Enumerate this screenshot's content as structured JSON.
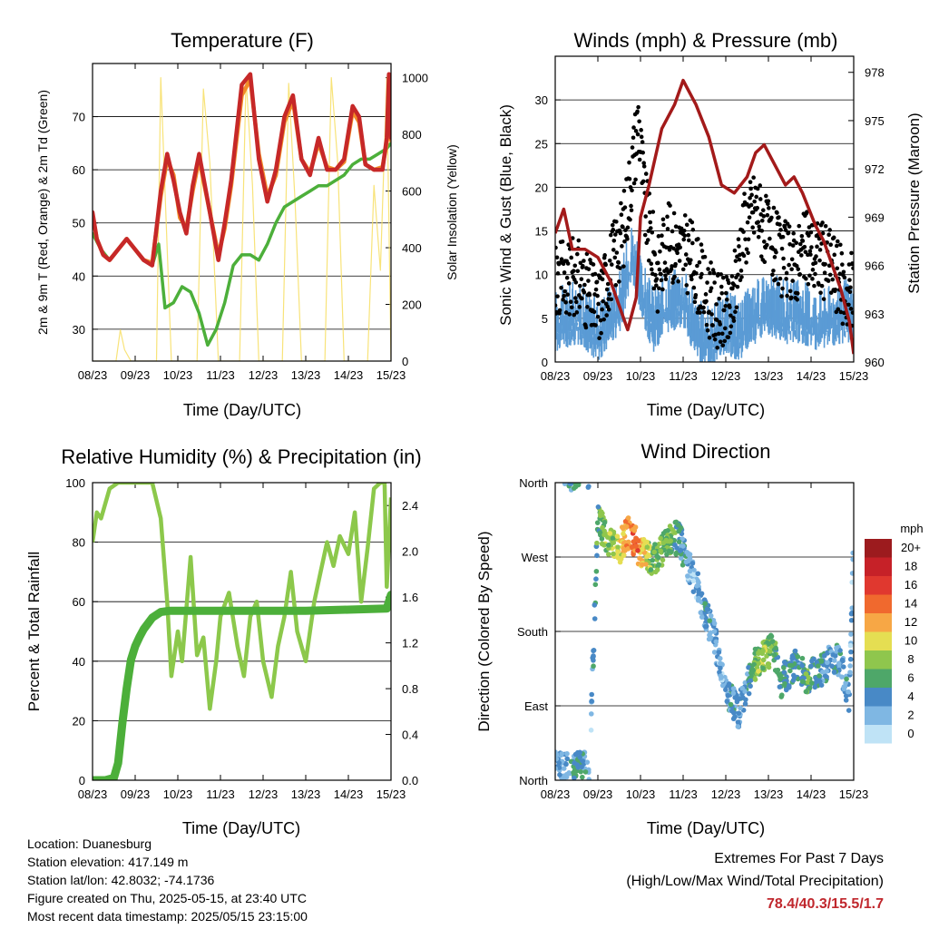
{
  "colors": {
    "temp_2m": "#c62828",
    "temp_9m": "#f28c28",
    "dewpoint": "#4caf3a",
    "solar": "#f7e06a",
    "wind": "#5a9bd5",
    "gust": "#000000",
    "pressure": "#a31a1a",
    "rh": "#8cc84b",
    "precip": "#4caf3a",
    "extremes": "#c0272d"
  },
  "chart_data": [
    {
      "id": "temperature",
      "type": "line",
      "title": "Temperature (F)",
      "xlabel": "Time (Day/UTC)",
      "ylabel": "2m & 9m T (Red, Orange) & 2m Td (Green)",
      "y2label": "Solar Insolation (Yellow)",
      "x_ticks": [
        "08/23",
        "09/23",
        "10/23",
        "11/23",
        "12/23",
        "13/23",
        "14/23",
        "15/23"
      ],
      "y_ticks": [
        30,
        40,
        50,
        60,
        70
      ],
      "ylim": [
        24,
        80
      ],
      "y2_ticks": [
        0,
        200,
        400,
        600,
        800,
        1000
      ],
      "y2lim": [
        0,
        1050
      ],
      "grid": true,
      "series": [
        {
          "name": "2m T",
          "color_key": "temp_2m",
          "x": [
            0,
            0.1,
            0.25,
            0.4,
            0.6,
            0.8,
            1.0,
            1.2,
            1.4,
            1.6,
            1.75,
            1.9,
            2.05,
            2.2,
            2.35,
            2.5,
            2.75,
            2.95,
            3.1,
            3.25,
            3.5,
            3.7,
            3.9,
            4.1,
            4.3,
            4.5,
            4.7,
            4.9,
            5.1,
            5.3,
            5.5,
            5.7,
            5.9,
            6.1,
            6.25,
            6.4,
            6.6,
            6.8,
            6.9,
            6.95,
            7.0
          ],
          "y": [
            52,
            47,
            44,
            43,
            45,
            47,
            45,
            43,
            42,
            56,
            63,
            58,
            52,
            48,
            57,
            63,
            52,
            43,
            50,
            58,
            76,
            78,
            62,
            54,
            60,
            70,
            74,
            62,
            59,
            66,
            60,
            60,
            62,
            72,
            70,
            61,
            60,
            60,
            66,
            78,
            66
          ]
        },
        {
          "name": "9m T",
          "color_key": "temp_9m",
          "x": [
            0,
            0.1,
            0.25,
            0.4,
            0.6,
            0.8,
            1.0,
            1.2,
            1.4,
            1.6,
            1.75,
            1.9,
            2.05,
            2.2,
            2.35,
            2.5,
            2.75,
            2.95,
            3.1,
            3.25,
            3.5,
            3.7,
            3.9,
            4.1,
            4.3,
            4.5,
            4.7,
            4.9,
            5.1,
            5.3,
            5.5,
            5.7,
            5.9,
            6.1,
            6.25,
            6.4,
            6.6,
            6.8,
            6.9,
            6.95,
            7.0
          ],
          "y": [
            51.5,
            47,
            44,
            43,
            45,
            47,
            45,
            43,
            42.5,
            55,
            62,
            59,
            51,
            49,
            56,
            62,
            52,
            44,
            49,
            57,
            74,
            77,
            63,
            55,
            59,
            69,
            73,
            62,
            59.5,
            65,
            60.5,
            60,
            61.5,
            71,
            69,
            61,
            60,
            60.5,
            65,
            76,
            65.5
          ]
        },
        {
          "name": "2m Td",
          "color_key": "dewpoint",
          "x": [
            0,
            0.2,
            0.4,
            0.6,
            0.8,
            1.0,
            1.2,
            1.4,
            1.55,
            1.7,
            1.9,
            2.1,
            2.3,
            2.5,
            2.7,
            2.9,
            3.1,
            3.3,
            3.5,
            3.7,
            3.9,
            4.1,
            4.3,
            4.5,
            4.7,
            4.9,
            5.1,
            5.3,
            5.5,
            5.7,
            5.9,
            6.1,
            6.3,
            6.5,
            6.7,
            6.9,
            7.0
          ],
          "y": [
            48,
            45,
            43,
            45,
            47,
            45,
            43,
            42,
            46,
            34,
            35,
            38,
            37,
            33,
            27,
            30,
            35,
            42,
            44,
            44,
            43,
            46,
            50,
            53,
            54,
            55,
            56,
            57,
            57,
            58,
            59,
            61,
            62,
            62,
            63,
            64,
            65
          ]
        },
        {
          "name": "Solar Insolation",
          "color_key": "solar",
          "axis": "y2",
          "x": [
            0,
            0.55,
            0.65,
            0.75,
            0.9,
            1.5,
            1.6,
            1.7,
            1.85,
            2.0,
            2.45,
            2.6,
            2.75,
            2.95,
            3.45,
            3.6,
            3.75,
            3.9,
            4.45,
            4.6,
            4.75,
            4.9,
            5.45,
            5.6,
            5.75,
            5.9,
            6.45,
            6.6,
            6.75,
            6.9,
            7.0
          ],
          "y": [
            0,
            0,
            110,
            40,
            0,
            0,
            1000,
            600,
            0,
            0,
            0,
            960,
            700,
            0,
            0,
            1000,
            620,
            0,
            0,
            980,
            560,
            0,
            0,
            1000,
            700,
            0,
            0,
            620,
            320,
            1000,
            0
          ]
        }
      ]
    },
    {
      "id": "winds",
      "type": "scatter",
      "title": "Winds (mph) & Pressure (mb)",
      "xlabel": "Time (Day/UTC)",
      "ylabel": "Sonic Wind & Gust (Blue, Black)",
      "y2label": "Station Pressure (Maroon)",
      "x_ticks": [
        "08/23",
        "09/23",
        "10/23",
        "11/23",
        "12/23",
        "13/23",
        "14/23",
        "15/23"
      ],
      "y_ticks": [
        0,
        5,
        10,
        15,
        20,
        25,
        30
      ],
      "ylim": [
        0,
        35
      ],
      "y2_ticks": [
        960,
        963,
        966,
        969,
        972,
        975,
        978
      ],
      "y2lim": [
        960,
        979
      ],
      "grid": true,
      "series": [
        {
          "name": "Sonic Wind",
          "color_key": "wind",
          "x": [
            0,
            0.5,
            1.0,
            1.5,
            1.8,
            2.0,
            2.3,
            2.6,
            3.0,
            3.3,
            3.6,
            4.0,
            4.3,
            4.7,
            5.0,
            5.4,
            5.8,
            6.2,
            6.6,
            7.0
          ],
          "y": [
            4,
            5,
            3,
            6,
            12,
            8,
            4,
            6,
            7,
            3,
            2,
            4,
            3,
            5,
            6,
            5,
            5,
            4,
            5,
            5
          ]
        },
        {
          "name": "Gust",
          "color_key": "gust",
          "x": [
            0,
            0.5,
            1.0,
            1.3,
            1.6,
            1.8,
            1.95,
            2.1,
            2.4,
            2.6,
            2.9,
            3.2,
            3.5,
            3.8,
            4.1,
            4.4,
            4.7,
            5.0,
            5.3,
            5.6,
            5.9,
            6.2,
            6.5,
            6.8,
            7.0
          ],
          "y": [
            9,
            10,
            6,
            11,
            15,
            22,
            28,
            18,
            10,
            14,
            13,
            12,
            8,
            6,
            5,
            15,
            18,
            14,
            12,
            11,
            13,
            12,
            11,
            8,
            8
          ]
        },
        {
          "name": "Station Pressure",
          "color_key": "pressure",
          "axis": "y2",
          "x": [
            0,
            0.2,
            0.4,
            0.7,
            1.0,
            1.3,
            1.5,
            1.7,
            1.9,
            2.0,
            2.2,
            2.5,
            2.8,
            3.0,
            3.1,
            3.3,
            3.6,
            3.9,
            4.2,
            4.5,
            4.7,
            4.9,
            5.1,
            5.4,
            5.6,
            5.8,
            6.1,
            6.3,
            6.5,
            6.7,
            6.9,
            7.0
          ],
          "y": [
            968,
            969.5,
            967,
            967,
            966.5,
            965,
            963.5,
            962,
            964,
            969,
            971,
            974.5,
            976,
            977.5,
            977,
            976,
            974,
            971,
            970.5,
            971.5,
            973,
            973.5,
            972.5,
            971,
            971.5,
            970.5,
            968.5,
            967.5,
            966,
            964.5,
            962.5,
            960.5
          ]
        }
      ]
    },
    {
      "id": "humidity",
      "type": "line",
      "title": "Relative Humidity (%) & Precipitation (in)",
      "xlabel": "Time (Day/UTC)",
      "ylabel": "Percent & Total Rainfall",
      "x_ticks": [
        "08/23",
        "09/23",
        "10/23",
        "11/23",
        "12/23",
        "13/23",
        "14/23",
        "15/23"
      ],
      "y_ticks": [
        0,
        20,
        40,
        60,
        80,
        100
      ],
      "ylim": [
        0,
        100
      ],
      "y2_ticks": [
        "0.0",
        "0.4",
        "0.8",
        "1.2",
        "1.6",
        "2.0",
        "2.4"
      ],
      "y2lim": [
        0,
        2.6
      ],
      "grid": true,
      "series": [
        {
          "name": "RH",
          "color_key": "rh",
          "x": [
            0,
            0.1,
            0.2,
            0.4,
            0.6,
            1.0,
            1.4,
            1.6,
            1.75,
            1.85,
            2.0,
            2.1,
            2.3,
            2.45,
            2.6,
            2.75,
            2.9,
            3.0,
            3.2,
            3.4,
            3.55,
            3.7,
            3.85,
            4.0,
            4.2,
            4.35,
            4.5,
            4.65,
            4.8,
            5.0,
            5.2,
            5.35,
            5.5,
            5.65,
            5.8,
            6.0,
            6.15,
            6.3,
            6.45,
            6.6,
            6.75,
            6.85,
            6.9,
            6.95,
            7.0
          ],
          "y": [
            80,
            90,
            88,
            98,
            100,
            100,
            100,
            88,
            60,
            35,
            50,
            40,
            75,
            42,
            48,
            24,
            40,
            55,
            63,
            45,
            35,
            55,
            60,
            40,
            28,
            45,
            55,
            70,
            50,
            40,
            60,
            70,
            80,
            72,
            82,
            76,
            90,
            60,
            78,
            98,
            100,
            100,
            65,
            80,
            95
          ]
        },
        {
          "name": "Total Precipitation",
          "color_key": "precip",
          "axis": "y2",
          "x": [
            0,
            0.3,
            0.5,
            0.6,
            0.7,
            0.8,
            0.9,
            1.0,
            1.1,
            1.2,
            1.4,
            1.6,
            1.8,
            2.0,
            3.0,
            4.0,
            5.0,
            6.0,
            6.9,
            7.0
          ],
          "y": [
            0,
            0,
            0.02,
            0.15,
            0.5,
            0.8,
            1.05,
            1.17,
            1.25,
            1.32,
            1.42,
            1.47,
            1.48,
            1.48,
            1.48,
            1.48,
            1.48,
            1.49,
            1.5,
            1.62
          ]
        }
      ]
    },
    {
      "id": "wind_direction",
      "type": "scatter",
      "title": "Wind Direction",
      "xlabel": "Time (Day/UTC)",
      "ylabel": "Direction (Colored By Speed)",
      "x_ticks": [
        "08/23",
        "09/23",
        "10/23",
        "11/23",
        "12/23",
        "13/23",
        "14/23",
        "15/23"
      ],
      "y_ticks": [
        "North",
        "East",
        "South",
        "West",
        "North"
      ],
      "ylim": [
        0,
        360
      ],
      "grid": true,
      "legend": {
        "title": "mph",
        "labels": [
          "20+",
          "18",
          "16",
          "14",
          "12",
          "10",
          "8",
          "6",
          "4",
          "2",
          "0"
        ],
        "colors": [
          "#9c1b1e",
          "#c62128",
          "#e0382f",
          "#f0692e",
          "#f7a745",
          "#e5de52",
          "#8fc64d",
          "#4ea769",
          "#4889c6",
          "#7fb7e3",
          "#bfe3f6"
        ],
        "placement": "right"
      },
      "series": [
        {
          "name": "direction",
          "x": [
            0,
            0.2,
            0.4,
            0.6,
            0.8,
            1.0,
            1.2,
            1.5,
            1.7,
            1.9,
            2.1,
            2.3,
            2.5,
            2.7,
            2.9,
            3.1,
            3.3,
            3.5,
            3.7,
            3.9,
            4.1,
            4.3,
            4.5,
            4.7,
            4.9,
            5.1,
            5.3,
            5.5,
            5.7,
            5.9,
            6.1,
            6.3,
            6.5,
            6.7,
            6.9,
            7.0
          ],
          "y": [
            20,
            15,
            10,
            18,
            12,
            320,
            290,
            280,
            300,
            285,
            270,
            265,
            280,
            290,
            295,
            260,
            240,
            200,
            180,
            130,
            100,
            80,
            120,
            140,
            150,
            160,
            120,
            130,
            140,
            120,
            130,
            135,
            150,
            140,
            100,
            300
          ],
          "speed": [
            3,
            3,
            4,
            5,
            2,
            6,
            8,
            9,
            13,
            14,
            10,
            6,
            8,
            7,
            5,
            3,
            2,
            4,
            3,
            2,
            4,
            3,
            4,
            7,
            8,
            6,
            5,
            5,
            4,
            6,
            5,
            4,
            3,
            4,
            3,
            2
          ]
        }
      ]
    }
  ],
  "info": {
    "location": "Location: Duanesburg",
    "elevation": "Station elevation: 417.149 m",
    "latlon": "Station lat/lon: 42.8032; -74.1736",
    "created": "Figure created on Thu, 2025-05-15, at 23:40 UTC",
    "recent": "Most recent data timestamp: 2025/05/15 23:15:00"
  },
  "extremes": {
    "title": "Extremes For Past 7 Days",
    "subtitle": "(High/Low/Max Wind/Total Precipitation)",
    "values": "78.4/40.3/15.5/1.7"
  }
}
